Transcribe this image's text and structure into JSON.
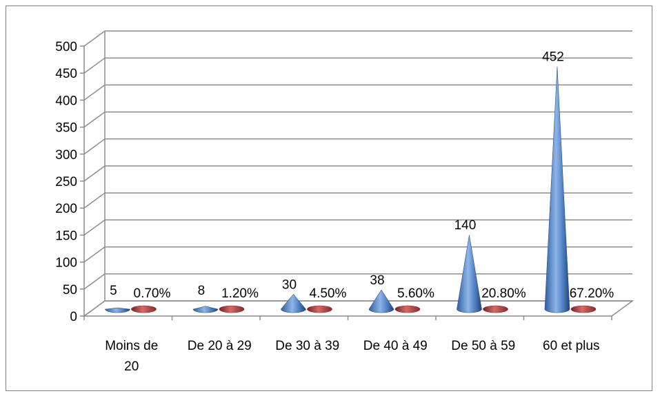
{
  "chart_data": {
    "type": "bar",
    "style": "3d-cone",
    "title": "",
    "xlabel": "",
    "ylabel": "",
    "ylim": [
      0,
      500
    ],
    "yticks": [
      0,
      50,
      100,
      150,
      200,
      250,
      300,
      350,
      400,
      450,
      500
    ],
    "grid": true,
    "legend": "none",
    "categories": [
      "Moins de 20",
      "De 20 à 29",
      "De 30 à 39",
      "De 40 à 49",
      "De 50 à 59",
      "60 et plus"
    ],
    "series": [
      {
        "values": [
          5,
          8,
          30,
          38,
          140,
          452
        ],
        "labels": [
          "5",
          "8",
          "30",
          "38",
          "140",
          "452"
        ],
        "color": "#4f81bd"
      },
      {
        "values": [
          0.7,
          1.2,
          4.5,
          5.6,
          20.8,
          67.2
        ],
        "labels": [
          "0.70%",
          "1.20%",
          "4.50%",
          "5.60%",
          "20.80%",
          "67.20%"
        ],
        "color": "#c0504d"
      }
    ]
  }
}
